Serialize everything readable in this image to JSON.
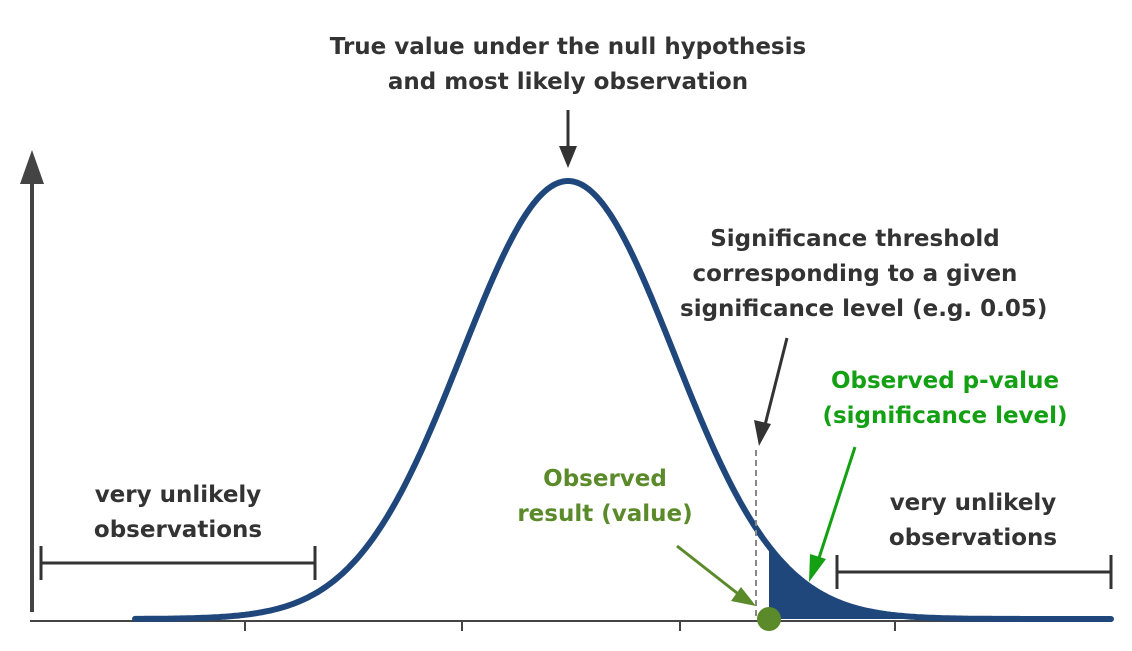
{
  "annotations": {
    "null_hypothesis": [
      "True value under the null hypothesis",
      "and most likely observation"
    ],
    "threshold": [
      "Significance threshold",
      "corresponding to a given",
      "significance level (e.g. 0.05)"
    ],
    "p_value": [
      "Observed p-value",
      "(significance level)"
    ],
    "observed_result": [
      "Observed",
      "result (value)"
    ],
    "unlikely_left": [
      "very unlikely",
      "observations"
    ],
    "unlikely_right": [
      "very unlikely",
      "observations"
    ]
  },
  "colors": {
    "curve": "#1f477c",
    "tail_fill": "#1f477c",
    "axis": "#444444",
    "text": "#333333",
    "p_value_text": "#13a013",
    "observed_text": "#5b8a2a",
    "observed_point": "#5b8a2a",
    "threshold_line": "#888888"
  }
}
